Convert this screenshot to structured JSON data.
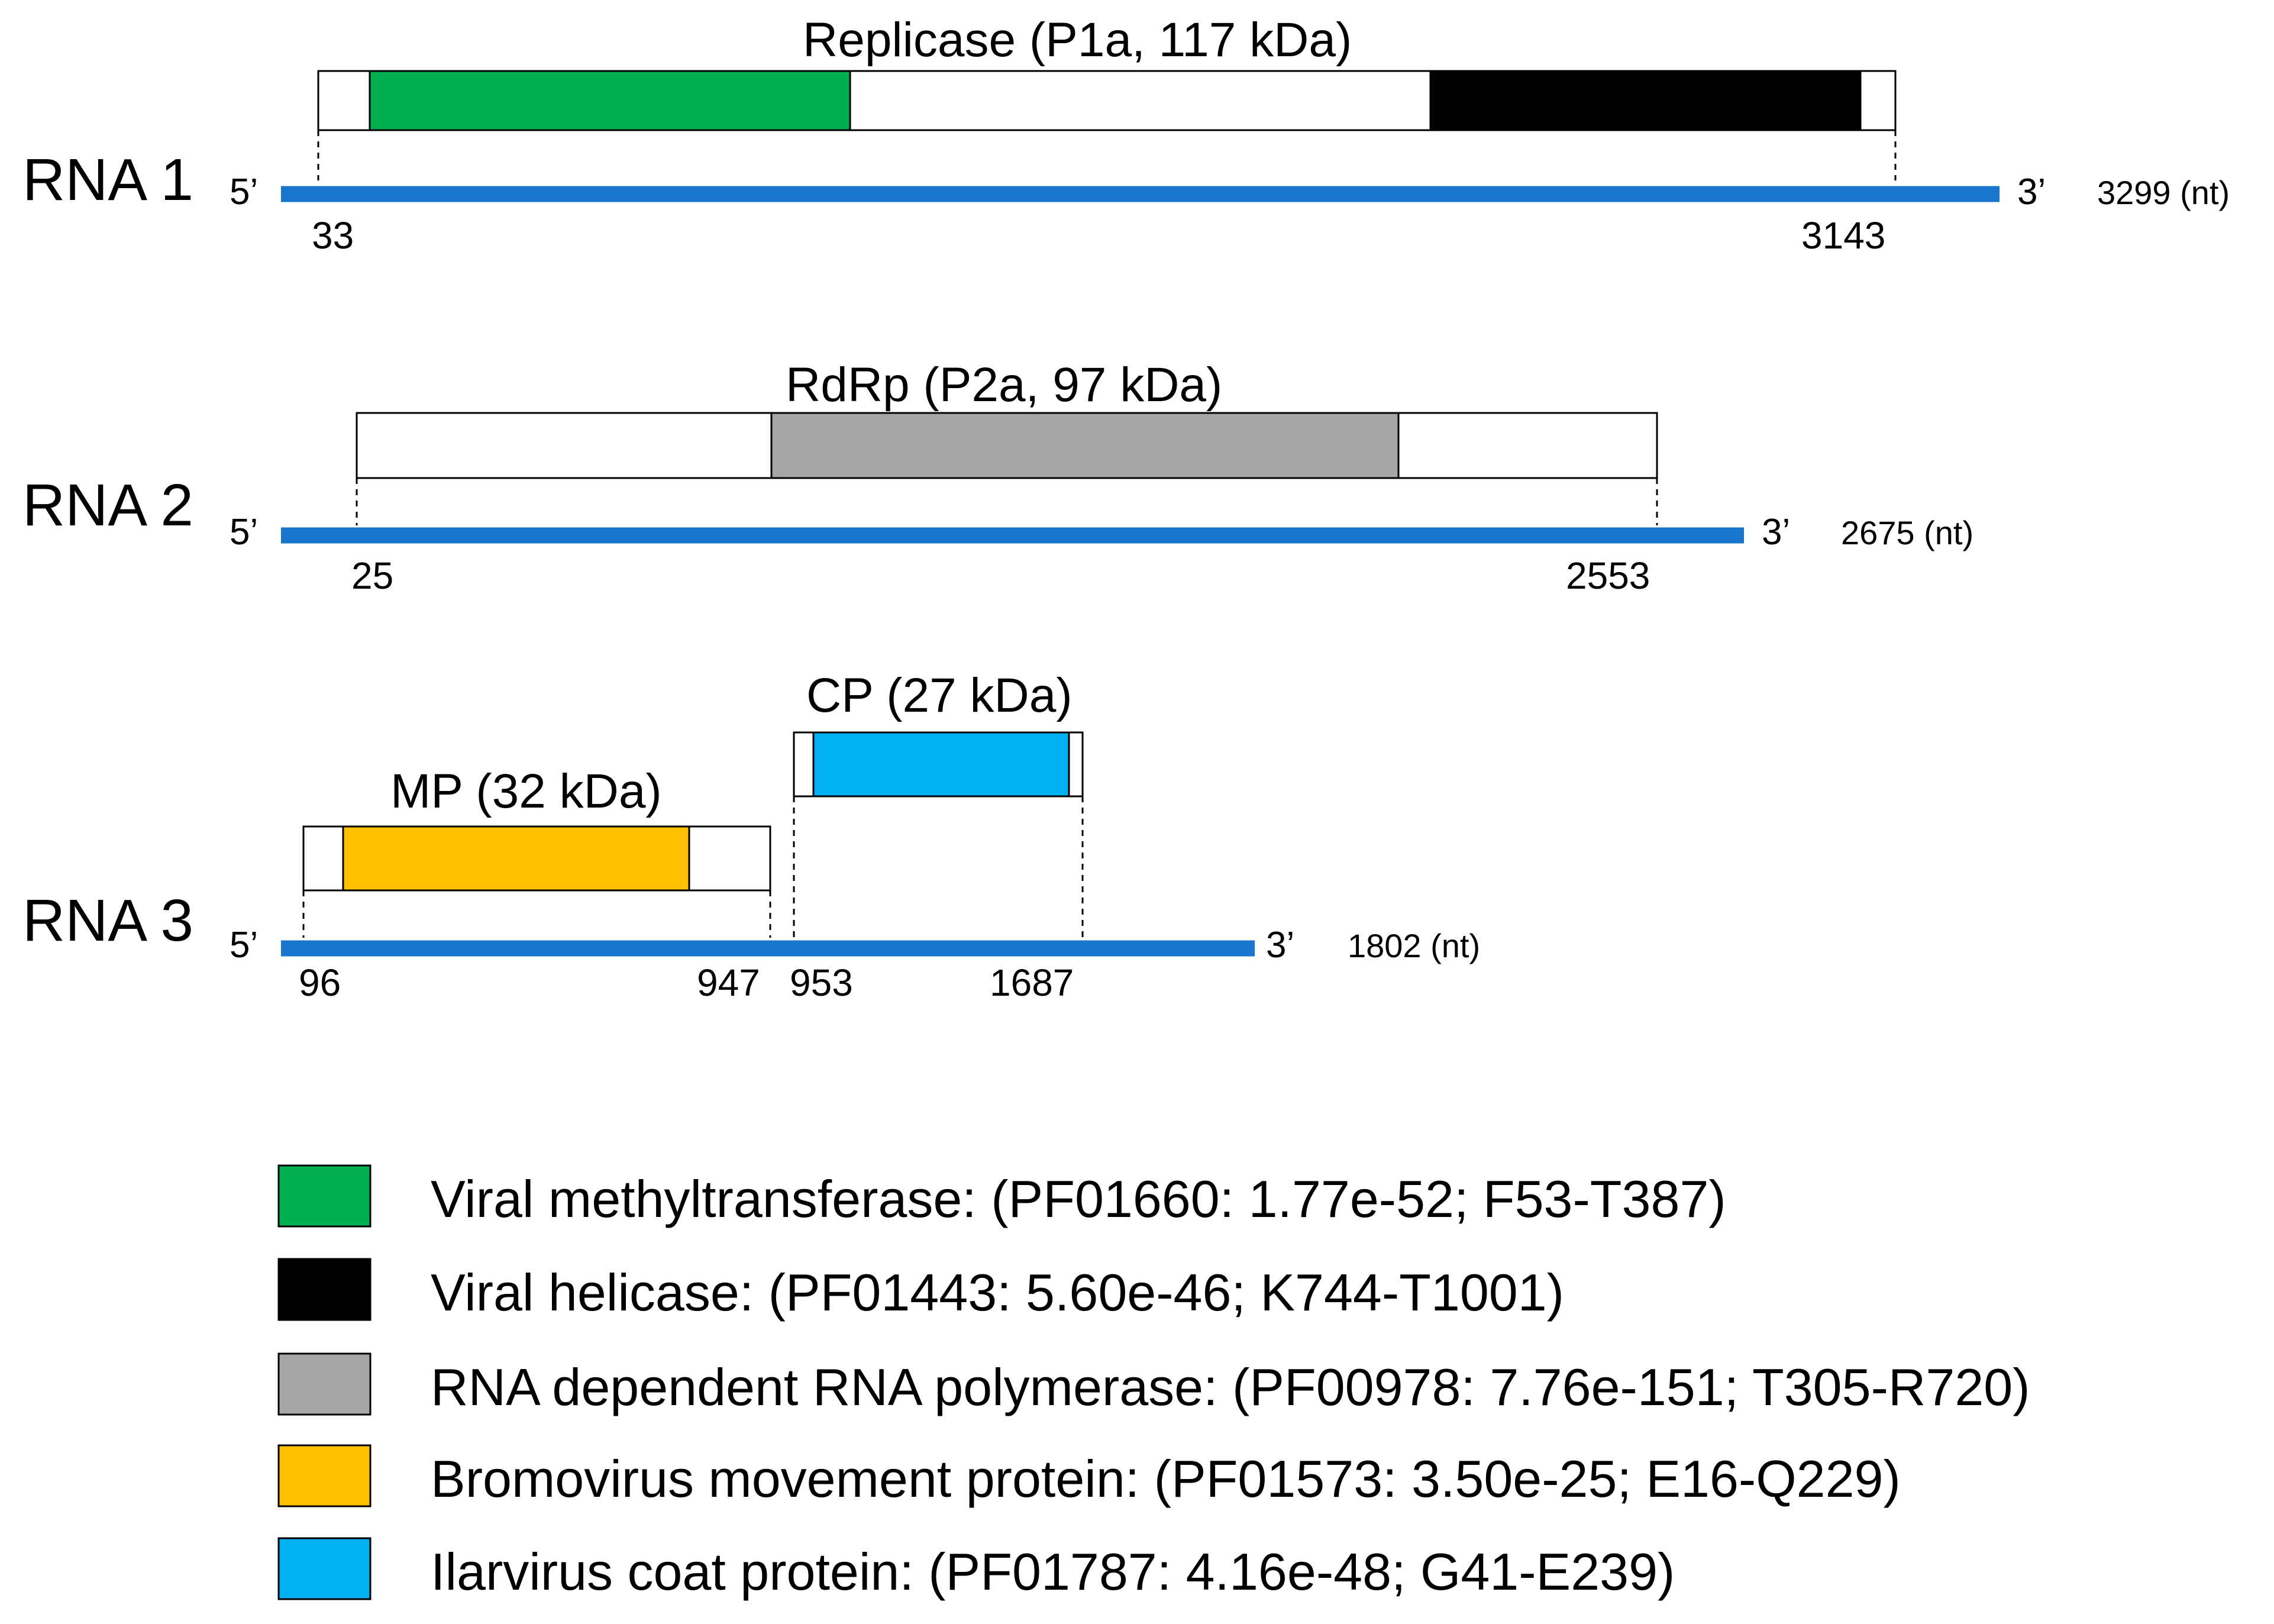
{
  "colors": {
    "rna_strand": "#1874CD",
    "methyltransferase": "#00B050",
    "helicase": "#000000",
    "rdrp": "#A6A6A6",
    "movement_protein": "#FFC000",
    "coat_protein": "#00B0F0"
  },
  "rna1": {
    "label": "RNA 1",
    "five_prime": "5’",
    "three_prime": "3’",
    "length": "3299 (nt)",
    "orf_start": "33",
    "orf_end": "3143",
    "protein_label": "Replicase (P1a, 117 kDa)"
  },
  "rna2": {
    "label": "RNA 2",
    "five_prime": "5’",
    "three_prime": "3’",
    "length": "2675 (nt)",
    "orf_start": "25",
    "orf_end": "2553",
    "protein_label": "RdRp (P2a, 97 kDa)"
  },
  "rna3": {
    "label": "RNA 3",
    "five_prime": "5’",
    "three_prime": "3’",
    "length": "1802 (nt)",
    "mp_start": "96",
    "mp_end": "947",
    "cp_start": "953",
    "cp_end": "1687",
    "mp_label": "MP  (32 kDa)",
    "cp_label": "CP  (27 kDa)"
  },
  "legend": [
    {
      "color": "#00B050",
      "text": "Viral methyltransferase: (PF01660: 1.77e-52; F53-T387)"
    },
    {
      "color": "#000000",
      "text": "Viral helicase: (PF01443: 5.60e-46; K744-T1001)"
    },
    {
      "color": "#A6A6A6",
      "text": "RNA dependent RNA polymerase: (PF00978: 7.76e-151; T305-R720)"
    },
    {
      "color": "#FFC000",
      "text": "Bromovirus movement protein: (PF01573: 3.50e-25; E16-Q229)"
    },
    {
      "color": "#00B0F0",
      "text": "Ilarvirus coat protein: (PF01787: 4.16e-48; G41-E239)"
    }
  ]
}
